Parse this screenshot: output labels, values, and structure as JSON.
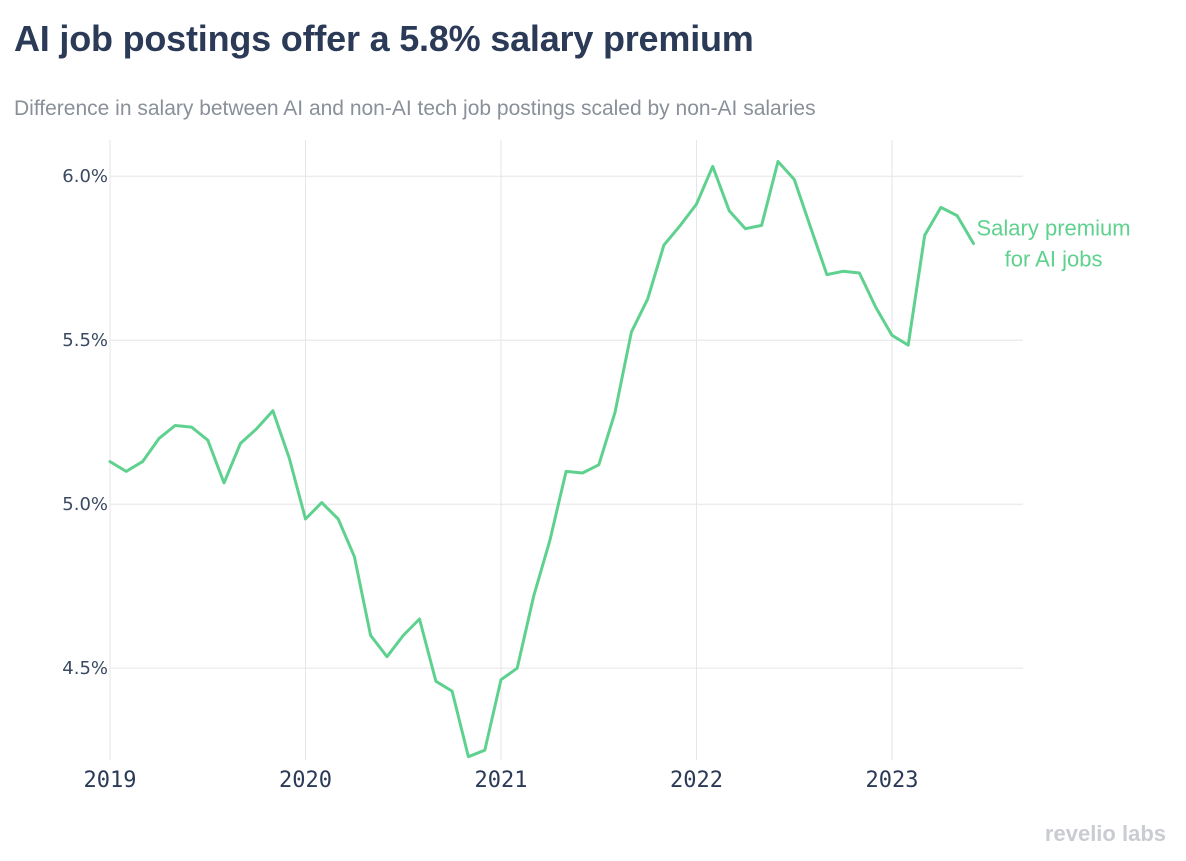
{
  "header": {
    "title": "AI job postings offer a 5.8% salary premium",
    "subtitle": "Difference in salary between AI and non-AI tech job postings scaled by non-AI salaries"
  },
  "brand": {
    "text": "revelio labs"
  },
  "colors": {
    "line": "#5fd18f",
    "grid": "#e6e6e6",
    "title": "#2b3a57"
  },
  "chart_data": {
    "type": "line",
    "title": "AI job postings offer a 5.8% salary premium",
    "subtitle": "Difference in salary between AI and non-AI tech job postings scaled by non-AI salaries",
    "xlabel": "",
    "ylabel": "",
    "xlim": [
      2019.0,
      2023.67
    ],
    "ylim": [
      4.22,
      6.08
    ],
    "x_ticks": [
      2019,
      2020,
      2021,
      2022,
      2023
    ],
    "x_tick_labels": [
      "2019",
      "2020",
      "2021",
      "2022",
      "2023"
    ],
    "y_ticks": [
      4.5,
      5.0,
      5.5,
      6.0
    ],
    "y_tick_labels": [
      "4.5%",
      "5.0%",
      "5.5%",
      "6.0%"
    ],
    "grid": true,
    "legend": "none",
    "series": [
      {
        "name": "Salary premium for AI jobs",
        "label_lines": [
          "Salary premium",
          "for AI jobs"
        ],
        "x": [
          2019.0,
          2019.083,
          2019.167,
          2019.25,
          2019.333,
          2019.417,
          2019.5,
          2019.583,
          2019.667,
          2019.75,
          2019.833,
          2019.917,
          2020.0,
          2020.083,
          2020.167,
          2020.25,
          2020.333,
          2020.417,
          2020.5,
          2020.583,
          2020.667,
          2020.75,
          2020.833,
          2020.917,
          2021.0,
          2021.083,
          2021.167,
          2021.25,
          2021.333,
          2021.417,
          2021.5,
          2021.583,
          2021.667,
          2021.75,
          2021.833,
          2021.917,
          2022.0,
          2022.083,
          2022.167,
          2022.25,
          2022.333,
          2022.417,
          2022.5,
          2022.583,
          2022.667,
          2022.75,
          2022.833,
          2022.917,
          2023.0,
          2023.083,
          2023.167,
          2023.25,
          2023.333,
          2023.417
        ],
        "y": [
          5.13,
          5.1,
          5.13,
          5.2,
          5.24,
          5.235,
          5.195,
          5.065,
          5.185,
          5.23,
          5.285,
          5.14,
          4.955,
          5.005,
          4.955,
          4.84,
          4.6,
          4.535,
          4.6,
          4.65,
          4.46,
          4.43,
          4.23,
          4.25,
          4.465,
          4.5,
          4.72,
          4.89,
          5.1,
          5.095,
          5.12,
          5.28,
          5.525,
          5.625,
          5.79,
          5.85,
          5.915,
          6.03,
          5.895,
          5.84,
          5.85,
          6.045,
          5.99,
          5.845,
          5.7,
          5.71,
          5.705,
          5.6,
          5.515,
          5.485,
          5.82,
          5.905,
          5.88,
          5.795
        ]
      }
    ]
  }
}
